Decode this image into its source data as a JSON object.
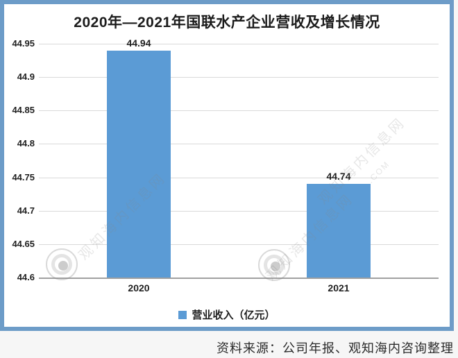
{
  "title": "2020年—2021年国联水产企业营收及增长情况",
  "chart_data": {
    "type": "bar",
    "title": "2020年—2021年国联水产企业营收及增长情况",
    "categories": [
      "2020",
      "2021"
    ],
    "series": [
      {
        "name": "营业收入（亿元）",
        "values": [
          44.94,
          44.74
        ]
      }
    ],
    "data_labels": [
      "44.94",
      "44.74"
    ],
    "ytick_labels": [
      "44.95",
      "44.9",
      "44.85",
      "44.8",
      "44.75",
      "44.7",
      "44.65",
      "44.6"
    ],
    "yticks": [
      44.95,
      44.9,
      44.85,
      44.8,
      44.75,
      44.7,
      44.65,
      44.6
    ],
    "ylim": [
      44.6,
      44.95
    ],
    "xlabel": "",
    "ylabel": "",
    "grid": true,
    "legend_position": "bottom"
  },
  "legend": {
    "label": "营业收入（亿元）",
    "marker_color": "#5b9bd5"
  },
  "source_note": "资料来源：公司年报、观知海内咨询整理",
  "watermark": {
    "site_text": "观知海内信息网",
    "url_fragment": ".COM"
  },
  "colors": {
    "frame_border": "#6d9cc8",
    "bar": "#5b9bd5",
    "gridline": "#d9d9d9",
    "axis_line": "#a0a0a0"
  }
}
